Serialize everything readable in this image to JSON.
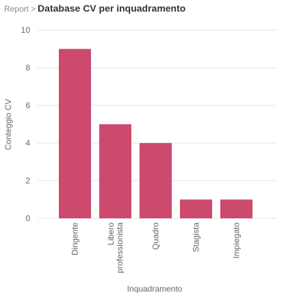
{
  "breadcrumb": {
    "parent": "Report",
    "separator": ">",
    "title": "Database CV per inquadramento"
  },
  "colors": {
    "bar": "#cc4a6d",
    "grid": "#e3e3e3",
    "axis_text": "#666666"
  },
  "chart_data": {
    "type": "bar",
    "title": "",
    "xlabel": "Inquadramento",
    "ylabel": "Conteggio CV",
    "categories": [
      [
        "Dirigente"
      ],
      [
        "Libero",
        "professionista"
      ],
      [
        "Quadro"
      ],
      [
        "Stagista"
      ],
      [
        "Impiegato"
      ]
    ],
    "values": [
      9,
      5,
      4,
      1,
      1
    ],
    "ylim": [
      0,
      10
    ],
    "yticks": [
      0,
      2,
      4,
      6,
      8,
      10
    ],
    "grid": true,
    "legend": "none"
  }
}
